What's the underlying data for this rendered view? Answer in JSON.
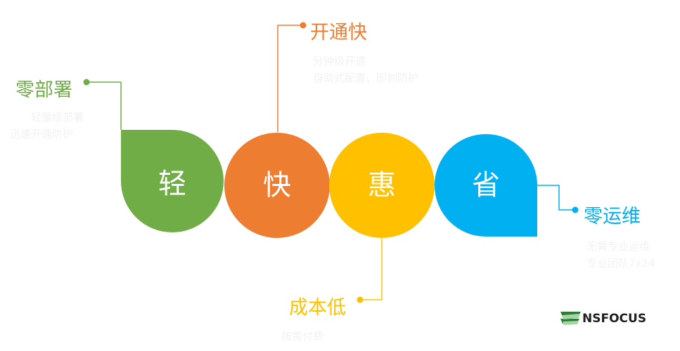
{
  "colors": {
    "green": "#70ad47",
    "orange": "#ed7d31",
    "yellow": "#ffc000",
    "blue": "#00b0f0"
  },
  "shapes": [
    {
      "char": "轻",
      "color": "#70ad47"
    },
    {
      "char": "快",
      "color": "#ed7d31"
    },
    {
      "char": "惠",
      "color": "#ffc000"
    },
    {
      "char": "省",
      "color": "#00b0f0"
    }
  ],
  "callouts": {
    "green": {
      "title": "零部署",
      "desc_lines": [
        "轻量级部署",
        "迅速开通防护"
      ]
    },
    "orange": {
      "title": "开通快",
      "desc_lines": [
        "分钟级开通",
        "自助式配置，即刻防护"
      ]
    },
    "yellow": {
      "title": "成本低",
      "desc_lines": [
        "按需付费"
      ]
    },
    "blue": {
      "title": "零运维",
      "desc_lines": [
        "无需专业运维",
        "专业团队7x24"
      ]
    }
  },
  "logo": {
    "text": "NSFOCUS",
    "icon": "nsfocus-flag-icon"
  }
}
